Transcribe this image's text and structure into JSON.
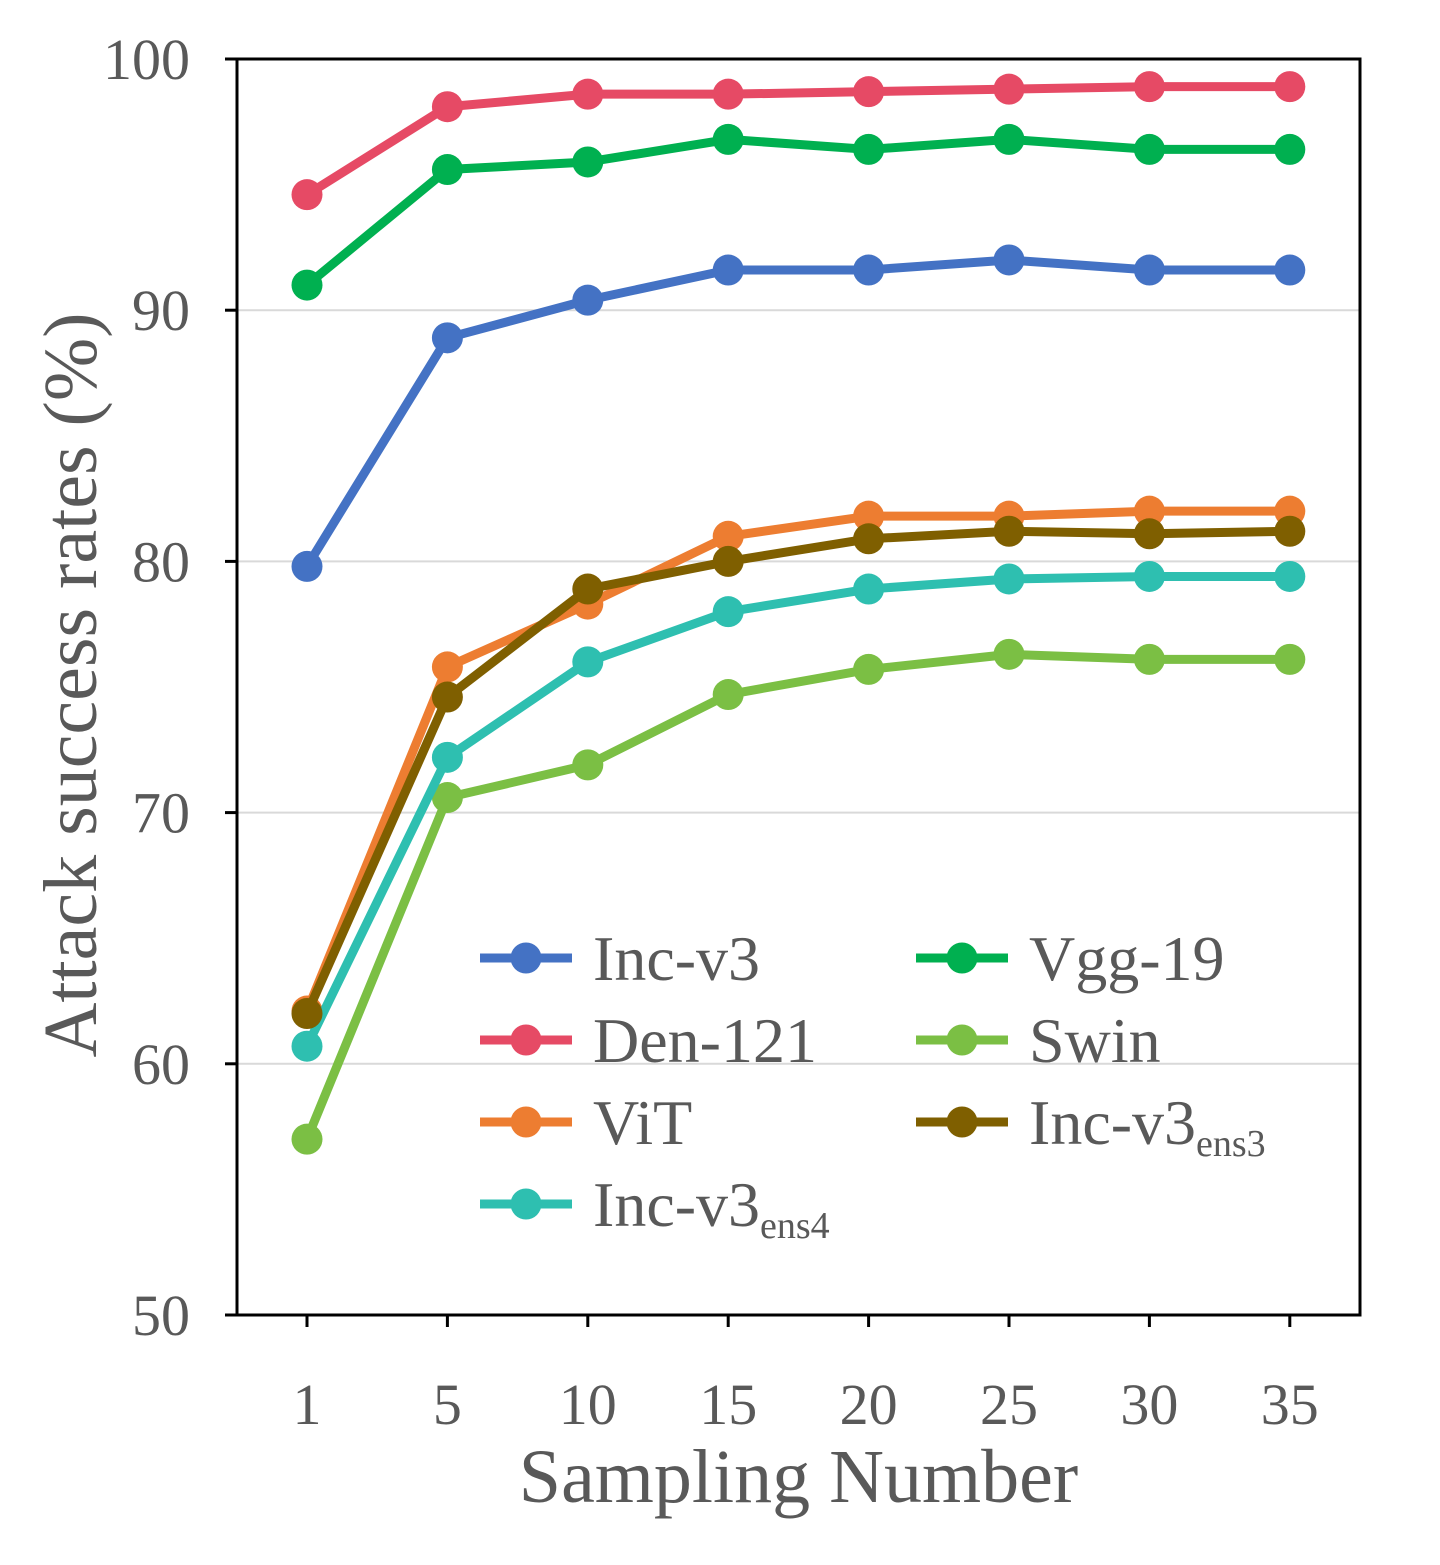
{
  "chart_data": {
    "type": "line",
    "title": "",
    "xlabel": "Sampling Number",
    "ylabel": "Attack success rates (%)",
    "categories": [
      "1",
      "5",
      "10",
      "15",
      "20",
      "25",
      "30",
      "35"
    ],
    "ylim": [
      50,
      100
    ],
    "yticks": [
      "50",
      "60",
      "70",
      "80",
      "90",
      "100"
    ],
    "grid": "horizontal",
    "legend_position": "lower-center",
    "series": [
      {
        "name": "Inc-v3",
        "subscript": "",
        "color": "#4472C4",
        "values": [
          79.8,
          88.9,
          90.4,
          91.6,
          91.6,
          92.0,
          91.6,
          91.6
        ]
      },
      {
        "name": "Vgg-19",
        "subscript": "",
        "color": "#00B050",
        "values": [
          91.0,
          95.6,
          95.9,
          96.8,
          96.4,
          96.8,
          96.4,
          96.4
        ]
      },
      {
        "name": "Den-121",
        "subscript": "",
        "color": "#E64A65",
        "values": [
          94.6,
          98.1,
          98.6,
          98.6,
          98.7,
          98.8,
          98.9,
          98.9
        ]
      },
      {
        "name": "Swin",
        "subscript": "",
        "color": "#7BBF44",
        "values": [
          57.0,
          70.6,
          71.9,
          74.7,
          75.7,
          76.3,
          76.1,
          76.1
        ]
      },
      {
        "name": "ViT",
        "subscript": "",
        "color": "#ED7D31",
        "values": [
          62.1,
          75.8,
          78.3,
          81.0,
          81.8,
          81.8,
          82.0,
          82.0
        ]
      },
      {
        "name": "Inc-v3",
        "subscript": "ens3",
        "color": "#7F5F00",
        "values": [
          62.0,
          74.6,
          78.9,
          80.0,
          80.9,
          81.2,
          81.1,
          81.2
        ]
      },
      {
        "name": "Inc-v3",
        "subscript": "ens4",
        "color": "#2EBFB0",
        "values": [
          60.7,
          72.2,
          76.0,
          78.0,
          78.9,
          79.3,
          79.4,
          79.4
        ]
      }
    ]
  }
}
